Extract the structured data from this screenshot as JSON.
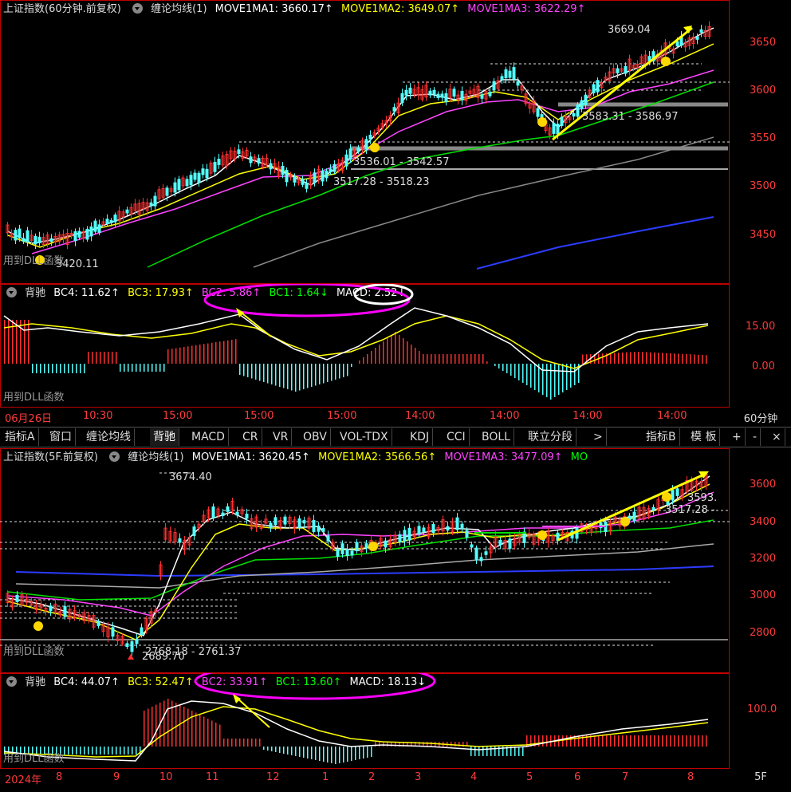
{
  "top_chart": {
    "title": "上证指数(60分钟.前复权)",
    "indicator": "缠论均线(1)",
    "ma1": "MOVE1MA1: 3660.17↑",
    "ma2": "MOVE1MA2: 3649.07↑",
    "ma3": "MOVE1MA3: 3622.29↑",
    "yticks": [
      "3650",
      "3600",
      "3550",
      "3500",
      "3450"
    ],
    "annotations": {
      "high": "3669.04",
      "low": "3420.11",
      "zone1": "3583.31 - 3586.97",
      "zone2": "3536.01 - 3542.57",
      "zone3": "3517.28 - 3518.23",
      "dll": "用到DLL函数"
    }
  },
  "top_macd": {
    "title": "背驰",
    "bc4": "BC4: 11.62↑",
    "bc3": "BC3: 17.93↑",
    "bc2": "BC2: 5.86↑",
    "bc1": "BC1: 1.64↓",
    "macd": "MACD: 2.52↓",
    "yticks": [
      "15.00",
      "0.00"
    ],
    "dll": "用到DLL函数"
  },
  "top_time_axis": {
    "labels": [
      "06月26日",
      "10:30",
      "15:00",
      "15:00",
      "15:00",
      "14:00",
      "14:00",
      "14:00",
      "14:00"
    ],
    "period": "60分钟"
  },
  "tabs": {
    "left": [
      "指标A",
      "窗口",
      "缠论均线",
      "背驰",
      "MACD",
      "CR",
      "VR",
      "OBV",
      "VOL-TDX",
      "KDJ",
      "CCI",
      "BOLL",
      "联立分段",
      ">"
    ],
    "active": "背驰",
    "right": [
      "指标B",
      "模 板",
      "+",
      "-",
      "×"
    ]
  },
  "bottom_chart": {
    "title": "上证指数(5F.前复权)",
    "indicator": "缠论均线(1)",
    "ma1": "MOVE1MA1: 3620.45↑",
    "ma2": "MOVE1MA2: 3566.56↑",
    "ma3": "MOVE1MA3: 3477.09↑",
    "ma4": "MO",
    "yticks": [
      "3600",
      "3400",
      "3200",
      "3000",
      "2800"
    ],
    "annotations": {
      "high": "3674.40",
      "low": "2689.70",
      "zone_low": "2768.18 - 2761.37",
      "zone_right1": "3593.",
      "zone_right2": "3517.28 -",
      "dll": "用到DLL函数"
    }
  },
  "bottom_macd": {
    "title": "背驰",
    "bc4": "BC4: 44.07↑",
    "bc3": "BC3: 52.47↑",
    "bc2": "BC2: 33.91↑",
    "bc1": "BC1: 13.60↑",
    "macd": "MACD: 18.13↓",
    "yticks": [
      "100.0"
    ],
    "dll": "用到DLL函数"
  },
  "bottom_time_axis": {
    "labels": [
      "2024年",
      "8",
      "9",
      "10",
      "11",
      "12",
      "1",
      "2",
      "3",
      "4",
      "5",
      "6",
      "7",
      "8"
    ],
    "period": "5F"
  },
  "colors": {
    "ma1": "#ffffff",
    "ma2": "#ffff00",
    "ma3": "#ff44ff",
    "ma4": "#00ff00",
    "up": "#ff3030",
    "down": "#54ffff",
    "axis": "#ff3b3b",
    "grid_border": "#c00000"
  }
}
